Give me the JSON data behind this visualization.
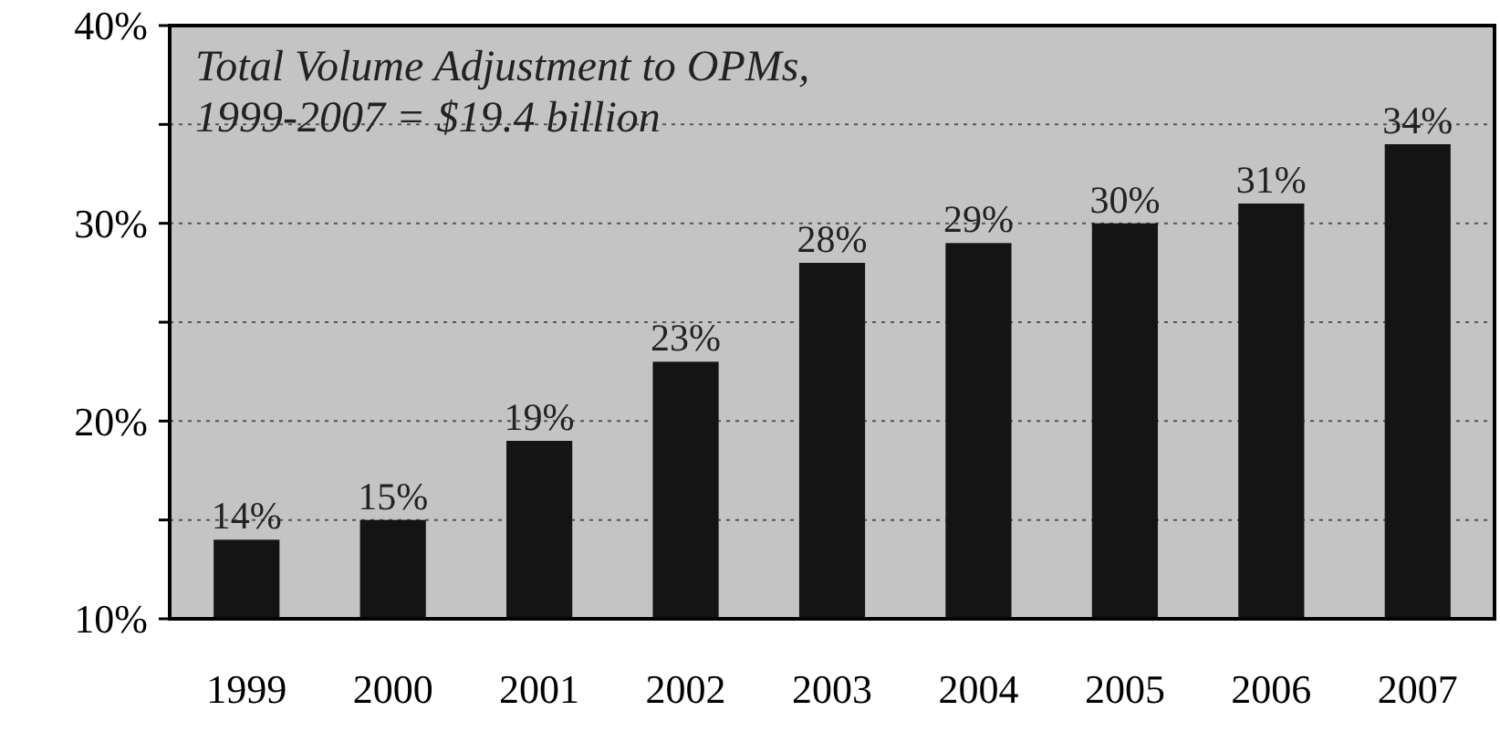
{
  "chart_data": {
    "type": "bar",
    "title": "Total Volume Adjustment to OPMs, 1999-2007 = $19.4 billion",
    "categories": [
      "1999",
      "2000",
      "2001",
      "2002",
      "2003",
      "2004",
      "2005",
      "2006",
      "2007"
    ],
    "values": [
      14,
      15,
      19,
      23,
      28,
      29,
      30,
      31,
      34
    ],
    "value_labels": [
      "14%",
      "15%",
      "19%",
      "23%",
      "28%",
      "29%",
      "30%",
      "31%",
      "34%"
    ],
    "color": "#141414",
    "ylim": [
      10,
      40
    ],
    "yticks": [
      {
        "value": 10,
        "label": "10%"
      },
      {
        "value": 15,
        "label": null
      },
      {
        "value": 20,
        "label": "20%"
      },
      {
        "value": 25,
        "label": null
      },
      {
        "value": 30,
        "label": "30%"
      },
      {
        "value": 35,
        "label": null
      },
      {
        "value": 40,
        "label": "40%"
      }
    ],
    "grid": "y"
  }
}
